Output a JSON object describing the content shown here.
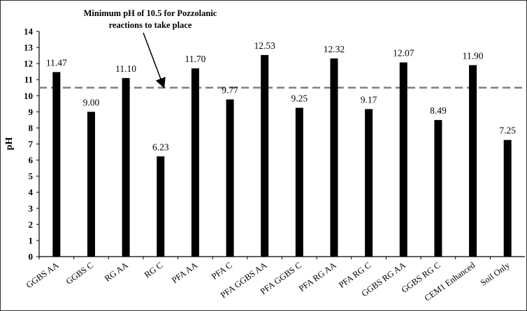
{
  "chart_data": {
    "type": "bar",
    "ylabel": "pH",
    "xlabel": "",
    "ylim": [
      0,
      14
    ],
    "yticks": [
      "0",
      "1",
      "2",
      "3",
      "4",
      "5",
      "6",
      "7",
      "8",
      "9",
      "10",
      "11",
      "12",
      "13",
      "14"
    ],
    "grid": false,
    "legend": "none",
    "categories": [
      "GGBS AA",
      "GGBS C",
      "RG AA",
      "RG C",
      "PFA AA",
      "PFA C",
      "PFA GGBS AA",
      "PFA GGBS C",
      "PFA RG AA",
      "PFA RG C",
      "GGBS RG AA",
      "GGBS RG C",
      "CEM1 Enhanced",
      "Soil Only"
    ],
    "values": [
      11.47,
      9.0,
      11.1,
      6.23,
      11.7,
      9.77,
      12.53,
      9.25,
      12.32,
      9.17,
      12.07,
      8.49,
      11.9,
      7.25
    ],
    "data_labels": [
      "11.47",
      "9.00",
      "11.10",
      "6.23",
      "11.70",
      "9.77",
      "12.53",
      "9.25",
      "12.32",
      "9.17",
      "12.07",
      "8.49",
      "11.90",
      "7.25"
    ],
    "reference_line": {
      "value": 10.5,
      "style": "dashed",
      "color": "#7f7f7f"
    },
    "annotation": {
      "line1": "Minimum pH of 10.5 for Pozzolanic",
      "line2": "reactions to take place"
    },
    "bar_color": "#000000"
  }
}
